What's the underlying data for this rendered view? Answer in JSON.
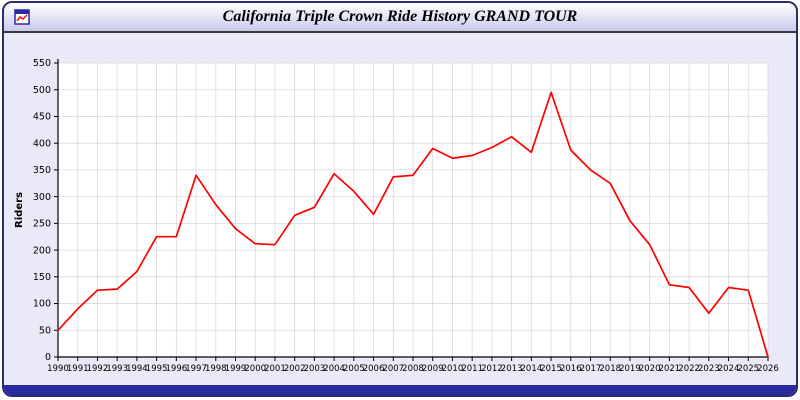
{
  "window": {
    "title": "California Triple Crown Ride History GRAND TOUR"
  },
  "icons": {
    "app_icon": "chart-window-icon"
  },
  "colors": {
    "line": "#ff0000",
    "grid": "#d9d9d9",
    "axis": "#000000",
    "plot_background": "#ffffff",
    "panel_background": "#e9e9f7",
    "bottom_bar": "#2a2aa0",
    "window_border": "#2b2b6e"
  },
  "chart_data": {
    "type": "line",
    "title": "California Triple Crown Ride History GRAND TOUR",
    "xlabel": "",
    "ylabel": "Riders",
    "ylim": [
      0,
      550
    ],
    "ytick_step": 50,
    "grid": true,
    "legend": "none",
    "categories": [
      "1990",
      "1991",
      "1992",
      "1993",
      "1994",
      "1995",
      "1996",
      "1997",
      "1998",
      "1999",
      "2000",
      "2001",
      "2002",
      "2003",
      "2004",
      "2005",
      "2006",
      "2007",
      "2008",
      "2009",
      "2010",
      "2011",
      "2012",
      "2013",
      "2014",
      "2015",
      "2016",
      "2017",
      "2018",
      "2019",
      "2020",
      "2021",
      "2022",
      "2023",
      "2024",
      "2025",
      "2026"
    ],
    "values": [
      50,
      90,
      125,
      127,
      160,
      225,
      225,
      340,
      285,
      240,
      212,
      210,
      265,
      280,
      343,
      310,
      267,
      337,
      340,
      390,
      372,
      377,
      392,
      412,
      383,
      495,
      387,
      350,
      325,
      255,
      210,
      135,
      130,
      82,
      130,
      125,
      0
    ]
  }
}
